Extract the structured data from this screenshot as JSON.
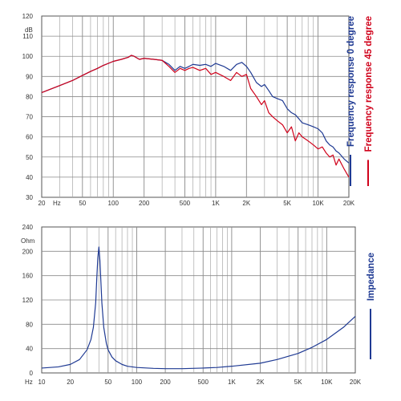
{
  "chart_data": [
    {
      "type": "line",
      "unit_label": "dB",
      "x_scale": "log",
      "xlim": [
        20,
        20000
      ],
      "ylim": [
        30,
        120
      ],
      "grid": true,
      "x_ticks": [
        {
          "value": 20,
          "label": "20"
        },
        {
          "value": 50,
          "label": "50"
        },
        {
          "value": 100,
          "label": "100"
        },
        {
          "value": 200,
          "label": "200"
        },
        {
          "value": 500,
          "label": "500"
        },
        {
          "value": 1000,
          "label": "1K"
        },
        {
          "value": 2000,
          "label": "2K"
        },
        {
          "value": 5000,
          "label": "5K"
        },
        {
          "value": 10000,
          "label": "10K"
        },
        {
          "value": 20000,
          "label": "20K"
        }
      ],
      "x_unit": "Hz",
      "y_ticks": [
        30,
        40,
        50,
        60,
        70,
        80,
        90,
        100,
        110,
        120
      ],
      "legend_placement": "right, vertical",
      "series": [
        {
          "name": "Frequency response 0 degree",
          "color": "#1f3a93",
          "x": [
            20,
            30,
            40,
            50,
            60,
            70,
            80,
            100,
            120,
            140,
            150,
            160,
            180,
            200,
            250,
            300,
            350,
            400,
            450,
            500,
            550,
            600,
            700,
            800,
            900,
            1000,
            1200,
            1400,
            1600,
            1800,
            2000,
            2200,
            2500,
            2800,
            3000,
            3300,
            3600,
            4000,
            4500,
            5000,
            5500,
            6000,
            6500,
            7000,
            8000,
            9000,
            10000,
            11000,
            12000,
            13000,
            14000,
            15000,
            16000,
            18000,
            20000
          ],
          "values": [
            82,
            85.5,
            88,
            90.5,
            92.5,
            94,
            95.5,
            97.5,
            98.5,
            99.5,
            100.5,
            100,
            98.5,
            99,
            98.5,
            98,
            96,
            93,
            95,
            94,
            95,
            96,
            95.5,
            96,
            95,
            96.5,
            95,
            93,
            96,
            97,
            95,
            92,
            87,
            85,
            86,
            83,
            80,
            79,
            78,
            74,
            72,
            71,
            69,
            67,
            66,
            65,
            64,
            62,
            58,
            56,
            55,
            53,
            52,
            49,
            47
          ]
        },
        {
          "name": "Frequency response 45 degree",
          "color": "#d0021b",
          "x": [
            20,
            30,
            40,
            50,
            60,
            70,
            80,
            100,
            120,
            140,
            150,
            160,
            180,
            200,
            250,
            300,
            350,
            400,
            450,
            500,
            550,
            600,
            700,
            800,
            900,
            1000,
            1200,
            1400,
            1600,
            1800,
            2000,
            2200,
            2500,
            2800,
            3000,
            3300,
            3600,
            4000,
            4500,
            5000,
            5500,
            6000,
            6500,
            7000,
            8000,
            9000,
            10000,
            11000,
            12000,
            13000,
            14000,
            15000,
            16000,
            18000,
            20000
          ],
          "values": [
            82,
            85.5,
            88,
            90.5,
            92.5,
            94,
            95.5,
            97.5,
            98.5,
            99.5,
            100.5,
            100,
            98.5,
            99,
            98.5,
            98,
            95,
            92,
            94,
            93,
            94,
            94.5,
            93,
            94,
            91,
            92,
            90,
            88,
            92,
            90,
            91,
            84,
            80,
            76,
            78,
            72,
            70,
            68,
            66,
            62,
            65,
            58,
            62,
            60,
            58,
            56,
            54,
            55,
            52,
            50,
            51,
            46,
            49,
            44,
            40
          ]
        }
      ]
    },
    {
      "type": "line",
      "unit_label": "Ohm",
      "x_scale": "log",
      "xlim": [
        10,
        20000
      ],
      "ylim": [
        0,
        240
      ],
      "grid": true,
      "x_ticks": [
        {
          "value": 10,
          "label": "10"
        },
        {
          "value": 20,
          "label": "20"
        },
        {
          "value": 50,
          "label": "50"
        },
        {
          "value": 100,
          "label": "100"
        },
        {
          "value": 200,
          "label": "200"
        },
        {
          "value": 500,
          "label": "500"
        },
        {
          "value": 1000,
          "label": "1K"
        },
        {
          "value": 2000,
          "label": "2K"
        },
        {
          "value": 5000,
          "label": "5K"
        },
        {
          "value": 10000,
          "label": "10K"
        },
        {
          "value": 20000,
          "label": "20K"
        }
      ],
      "x_unit": "Hz",
      "y_ticks": [
        0,
        40,
        80,
        120,
        160,
        200,
        240
      ],
      "legend_placement": "right, vertical",
      "series": [
        {
          "name": "Impedance",
          "color": "#1f3a93",
          "x": [
            10,
            15,
            20,
            25,
            30,
            33,
            35,
            37,
            38,
            39,
            40,
            41,
            42,
            43,
            45,
            48,
            50,
            55,
            60,
            70,
            80,
            100,
            150,
            200,
            300,
            500,
            700,
            1000,
            2000,
            3000,
            5000,
            7000,
            10000,
            15000,
            20000
          ],
          "values": [
            8,
            10,
            14,
            22,
            38,
            55,
            75,
            115,
            155,
            190,
            207,
            185,
            150,
            115,
            75,
            48,
            38,
            26,
            20,
            14,
            11,
            9,
            7.5,
            7,
            7,
            8,
            9,
            11,
            16,
            22,
            32,
            42,
            55,
            75,
            93
          ]
        }
      ]
    }
  ]
}
